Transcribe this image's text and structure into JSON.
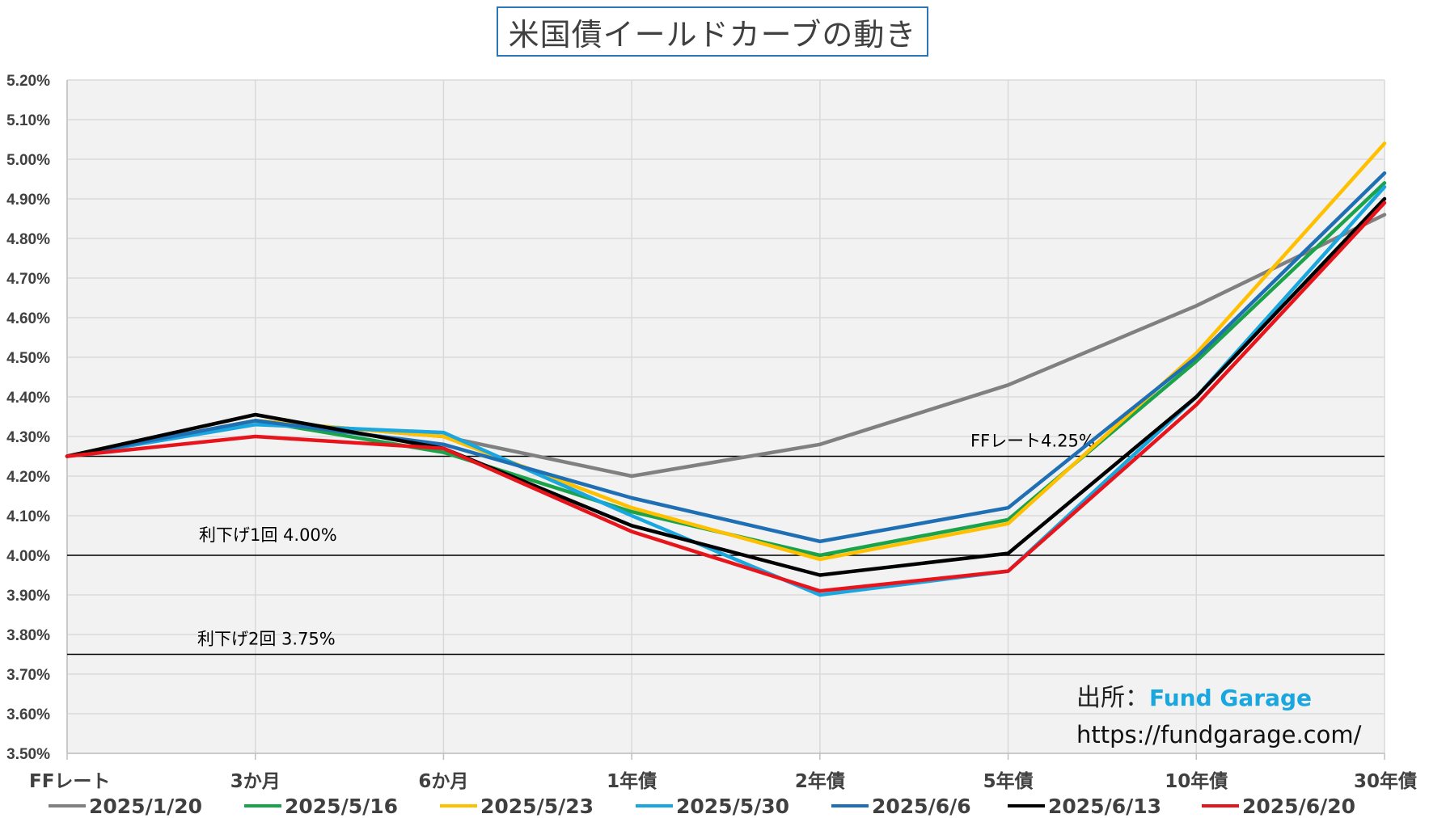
{
  "title": "米国債イールドカーブの動き",
  "source": {
    "label": "出所：",
    "brand": "Fund Garage",
    "url": "https://fundgarage.com/"
  },
  "chart_data": {
    "type": "line",
    "title": "米国債イールドカーブの動き",
    "categories": [
      "FFレート",
      "3か月",
      "6か月",
      "1年債",
      "2年債",
      "5年債",
      "10年債",
      "30年債"
    ],
    "ylim": [
      3.5,
      5.2
    ],
    "y_ticks": [
      "3.50%",
      "3.60%",
      "3.70%",
      "3.80%",
      "3.90%",
      "4.00%",
      "4.10%",
      "4.20%",
      "4.30%",
      "4.40%",
      "4.50%",
      "4.60%",
      "4.70%",
      "4.80%",
      "4.90%",
      "5.00%",
      "5.10%",
      "5.20%"
    ],
    "grid": true,
    "legend_position": "bottom",
    "series": [
      {
        "name": "2025/1/20",
        "color": "#808080",
        "values": [
          4.25,
          4.34,
          4.3,
          4.2,
          4.28,
          4.43,
          4.63,
          4.86
        ]
      },
      {
        "name": "2025/5/16",
        "color": "#1aa34a",
        "values": [
          4.25,
          4.34,
          4.26,
          4.11,
          4.0,
          4.09,
          4.49,
          4.94
        ]
      },
      {
        "name": "2025/5/23",
        "color": "#ffc000",
        "values": [
          4.25,
          4.34,
          4.3,
          4.12,
          3.99,
          4.08,
          4.51,
          5.04
        ]
      },
      {
        "name": "2025/5/30",
        "color": "#1aa7e0",
        "values": [
          4.25,
          4.33,
          4.31,
          4.1,
          3.9,
          3.96,
          4.4,
          4.93
        ]
      },
      {
        "name": "2025/6/6",
        "color": "#1f6fb4",
        "values": [
          4.25,
          4.34,
          4.28,
          4.145,
          4.035,
          4.12,
          4.5,
          4.965
        ]
      },
      {
        "name": "2025/6/13",
        "color": "#000000",
        "values": [
          4.25,
          4.355,
          4.27,
          4.075,
          3.95,
          4.005,
          4.4,
          4.9
        ]
      },
      {
        "name": "2025/6/20",
        "color": "#e8141c",
        "values": [
          4.25,
          4.3,
          4.27,
          4.06,
          3.91,
          3.96,
          4.38,
          4.89
        ]
      }
    ],
    "reference_lines": [
      {
        "label": "FFレート4.25%",
        "value": 4.25
      },
      {
        "label": "利下げ1回 4.00%",
        "value": 4.0
      },
      {
        "label": "利下げ2回 3.75%",
        "value": 3.75
      }
    ]
  }
}
